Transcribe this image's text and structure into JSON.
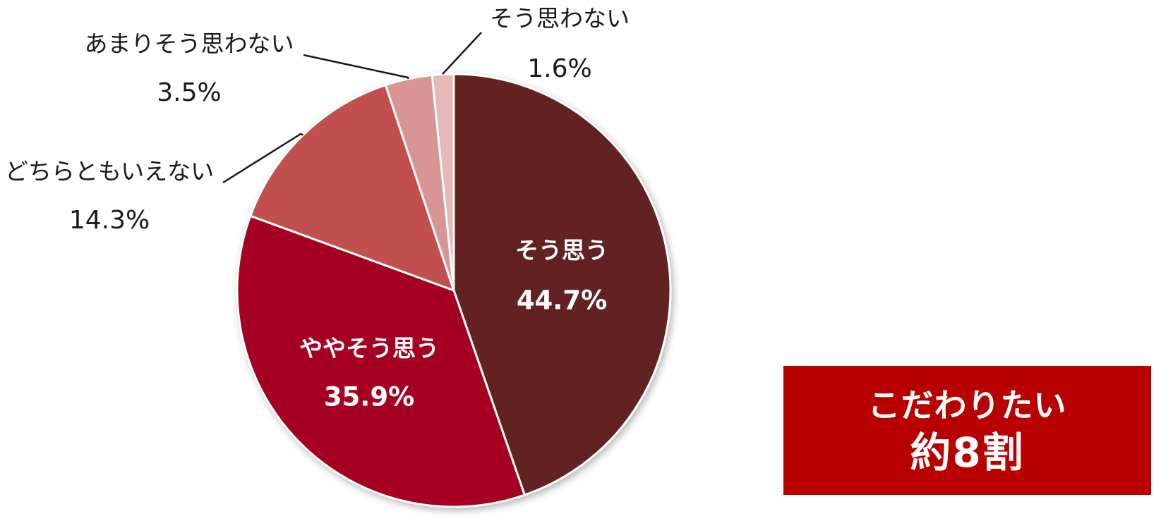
{
  "chart_data": {
    "type": "pie",
    "slices": [
      {
        "label": "そう思う",
        "value": 44.7,
        "value_label": "44.7%",
        "color": "#622323"
      },
      {
        "label": "ややそう思う",
        "value": 35.9,
        "value_label": "35.9%",
        "color": "#a50021"
      },
      {
        "label": "どちらともいえない",
        "value": 14.3,
        "value_label": "14.3%",
        "color": "#c0504d"
      },
      {
        "label": "あまりそう思わない",
        "value": 3.5,
        "value_label": "3.5%",
        "color": "#d99594"
      },
      {
        "label": "そう思わない",
        "value": 1.6,
        "value_label": "1.6%",
        "color": "#e6b9b8"
      }
    ],
    "start_angle": "12 o'clock",
    "direction": "clockwise"
  },
  "callout": {
    "line1": "こだわりたい",
    "line2": "約8割",
    "background": "#b80000"
  }
}
